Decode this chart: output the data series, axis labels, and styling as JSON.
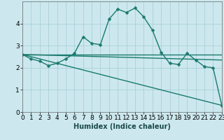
{
  "xlabel": "Humidex (Indice chaleur)",
  "ylabel": "",
  "background_color": "#cce8ee",
  "grid_color": "#aacfd8",
  "line_color": "#1a7a6e",
  "x_min": 0,
  "x_max": 23,
  "y_min": 0,
  "y_max": 5,
  "series1_x": [
    0,
    1,
    2,
    3,
    4,
    5,
    6,
    7,
    8,
    9,
    10,
    11,
    12,
    13,
    14,
    15,
    16,
    17,
    18,
    19,
    20,
    21,
    22,
    23
  ],
  "series1_y": [
    2.6,
    2.4,
    2.3,
    2.1,
    2.2,
    2.4,
    2.65,
    3.4,
    3.1,
    3.05,
    4.2,
    4.65,
    4.5,
    4.7,
    4.3,
    3.7,
    2.7,
    2.2,
    2.15,
    2.65,
    2.35,
    2.05,
    2.0,
    0.3
  ],
  "series2_x": [
    0,
    23
  ],
  "series2_y": [
    2.6,
    2.6
  ],
  "series3_x": [
    0,
    23
  ],
  "series3_y": [
    2.6,
    0.3
  ],
  "series4_x": [
    0,
    23
  ],
  "series4_y": [
    2.6,
    2.35
  ],
  "yticks": [
    0,
    1,
    2,
    3,
    4
  ],
  "xticks": [
    0,
    1,
    2,
    3,
    4,
    5,
    6,
    7,
    8,
    9,
    10,
    11,
    12,
    13,
    14,
    15,
    16,
    17,
    18,
    19,
    20,
    21,
    22,
    23
  ],
  "tick_fontsize": 6.5,
  "xlabel_fontsize": 7,
  "marker": "D",
  "markersize": 2.5,
  "linewidth": 1.0
}
